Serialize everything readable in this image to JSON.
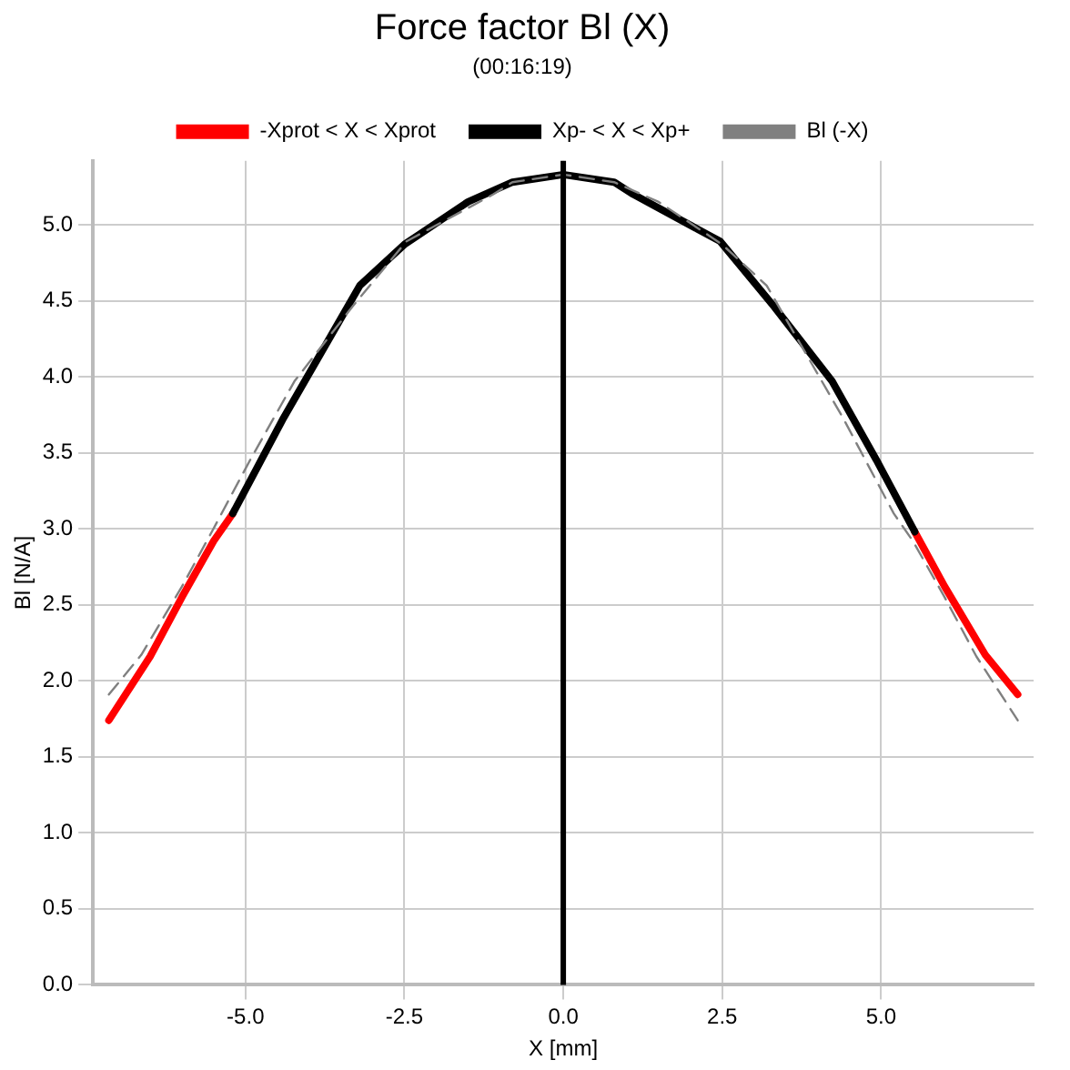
{
  "chart_data": {
    "type": "line",
    "title": "Force factor Bl (X)",
    "subtitle": "(00:16:19)",
    "xlabel": "X [mm]",
    "ylabel": "Bl [N/A]",
    "xlim": [
      -7.4,
      7.4
    ],
    "ylim": [
      0,
      5.42
    ],
    "xticks": [
      {
        "value": -5,
        "label": "-5.0"
      },
      {
        "value": -2.5,
        "label": "-2.5"
      },
      {
        "value": 0,
        "label": "0.0"
      },
      {
        "value": 2.5,
        "label": "2.5"
      },
      {
        "value": 5,
        "label": "5.0"
      }
    ],
    "yticks": [
      {
        "value": 0,
        "label": "0.0"
      },
      {
        "value": 0.5,
        "label": "0.5"
      },
      {
        "value": 1,
        "label": "1.0"
      },
      {
        "value": 1.5,
        "label": "1.5"
      },
      {
        "value": 2,
        "label": "2.0"
      },
      {
        "value": 2.5,
        "label": "2.5"
      },
      {
        "value": 3,
        "label": "3.0"
      },
      {
        "value": 3.5,
        "label": "3.5"
      },
      {
        "value": 4,
        "label": "4.0"
      },
      {
        "value": 4.5,
        "label": "4.5"
      },
      {
        "value": 5,
        "label": "5.0"
      }
    ],
    "grid": true,
    "legend": "top",
    "marker": "none",
    "series": [
      {
        "name": "-Xprot < X < Xprot",
        "color": "#ff0000",
        "line_style": "solid",
        "x": [
          -7.15,
          -6.5,
          -6,
          -5.5,
          -5.2,
          -4.4,
          -3.2,
          -2.5,
          -1.5,
          -0.8,
          0,
          0.8,
          1.1,
          2.47,
          3.32,
          4.23,
          4.93,
          5.53,
          6,
          6.64,
          7.15
        ],
        "values": [
          1.74,
          2.16,
          2.55,
          2.92,
          3.1,
          null,
          null,
          null,
          null,
          null,
          null,
          null,
          null,
          null,
          null,
          null,
          null,
          2.98,
          2.62,
          2.17,
          1.91
        ]
      },
      {
        "name": "Xp- < X < Xp+",
        "color": "#000000",
        "line_style": "solid",
        "x": [
          -5.2,
          -4.4,
          -3.2,
          -2.5,
          -1.5,
          -0.8,
          0,
          0.8,
          1.1,
          2.47,
          3.32,
          4.23,
          4.93,
          5.53
        ],
        "values": [
          3.1,
          3.73,
          4.6,
          4.87,
          5.15,
          5.28,
          5.33,
          5.28,
          5.2,
          4.89,
          4.46,
          3.97,
          3.45,
          2.98
        ]
      },
      {
        "name": "Bl (-X)",
        "color": "#808080",
        "line_style": "dashed",
        "x": [
          -7.15,
          -6.64,
          -6,
          -5.53,
          -4.93,
          -4.23,
          -3.32,
          -2.47,
          -1.1,
          -0.8,
          0,
          0.8,
          1.5,
          2.5,
          3.2,
          4.4,
          5.2,
          5.5,
          6,
          6.5,
          7.15
        ],
        "values": [
          1.91,
          2.17,
          2.62,
          2.98,
          3.45,
          3.97,
          4.46,
          4.89,
          5.2,
          5.28,
          5.33,
          5.28,
          5.15,
          4.87,
          4.6,
          3.73,
          3.1,
          2.92,
          2.55,
          2.16,
          1.74
        ]
      }
    ],
    "ref_lines": [
      {
        "axis": "x",
        "value": 0,
        "color": "#000000"
      }
    ]
  }
}
